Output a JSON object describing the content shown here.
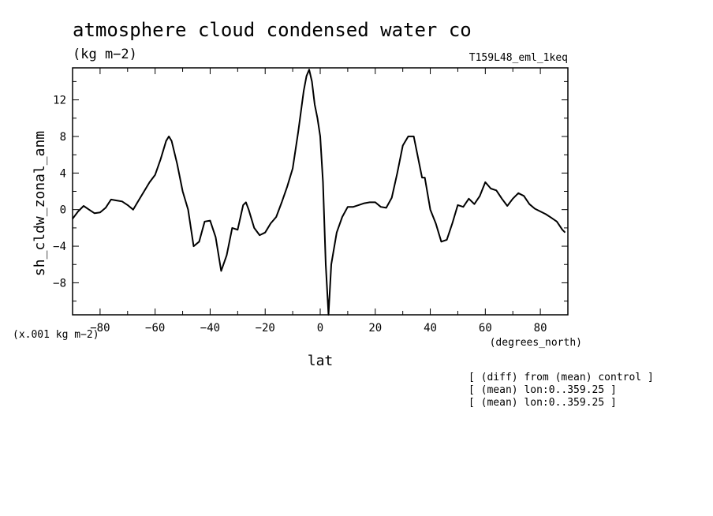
{
  "chart_data": {
    "type": "line",
    "title": "atmosphere cloud condensed water co",
    "units": "(kg m−2)",
    "run_label": "T159L48_eml_1keq",
    "ylabel": "sh_cldw_zonal_anm",
    "xlabel": "lat",
    "x_units": "(degrees_north)",
    "y_scale_note": "(x.001 kg m−2)",
    "notes": [
      "[ (diff) from (mean) control ]",
      "[ (mean) lon:0..359.25 ]",
      "[ (mean) lon:0..359.25 ]"
    ],
    "xlim": [
      -90,
      90
    ],
    "ylim": [
      -11.5,
      15.5
    ],
    "xticks": [
      -80,
      -60,
      -40,
      -20,
      0,
      20,
      40,
      60,
      80
    ],
    "yticks": [
      -8,
      -4,
      0,
      4,
      8,
      12
    ],
    "grid": false,
    "x": [
      -90,
      -88,
      -86,
      -84,
      -82,
      -80,
      -78,
      -76,
      -74,
      -72,
      -70,
      -68,
      -66,
      -64,
      -62,
      -60,
      -58,
      -56,
      -55,
      -54,
      -52,
      -50,
      -48,
      -46,
      -44,
      -42,
      -40,
      -38,
      -36,
      -34,
      -32,
      -30,
      -28,
      -27,
      -26,
      -24,
      -22,
      -20,
      -18,
      -16,
      -14,
      -12,
      -10,
      -8,
      -6,
      -5,
      -4,
      -3,
      -2,
      -1,
      0,
      1,
      2,
      3,
      4,
      6,
      8,
      10,
      12,
      14,
      16,
      18,
      20,
      22,
      24,
      26,
      28,
      30,
      32,
      34,
      36,
      37,
      38,
      40,
      42,
      44,
      46,
      48,
      50,
      52,
      54,
      56,
      58,
      60,
      62,
      64,
      66,
      68,
      70,
      72,
      74,
      76,
      78,
      80,
      82,
      84,
      86,
      88,
      89
    ],
    "y": [
      -1.0,
      -0.2,
      0.4,
      0.0,
      -0.4,
      -0.3,
      0.2,
      1.1,
      1.0,
      0.9,
      0.5,
      0.0,
      1.0,
      2.0,
      3.0,
      3.8,
      5.5,
      7.5,
      8.0,
      7.5,
      5.0,
      2.0,
      0.0,
      -4.0,
      -3.5,
      -1.3,
      -1.2,
      -3.0,
      -6.7,
      -5.0,
      -2.0,
      -2.2,
      0.5,
      0.8,
      0.0,
      -2.0,
      -2.8,
      -2.5,
      -1.5,
      -0.8,
      0.8,
      2.5,
      4.5,
      8.5,
      13.0,
      14.6,
      15.3,
      14.0,
      11.5,
      10.0,
      8.0,
      3.0,
      -6.0,
      -11.5,
      -6.0,
      -2.5,
      -0.8,
      0.3,
      0.3,
      0.5,
      0.7,
      0.8,
      0.8,
      0.3,
      0.2,
      1.3,
      4.0,
      7.0,
      8.0,
      8.0,
      5.0,
      3.5,
      3.5,
      0.0,
      -1.5,
      -3.5,
      -3.3,
      -1.5,
      0.5,
      0.3,
      1.2,
      0.6,
      1.5,
      3.0,
      2.3,
      2.1,
      1.2,
      0.4,
      1.2,
      1.8,
      1.5,
      0.6,
      0.1,
      -0.2,
      -0.5,
      -0.9,
      -1.3,
      -2.2,
      -2.5
    ]
  }
}
